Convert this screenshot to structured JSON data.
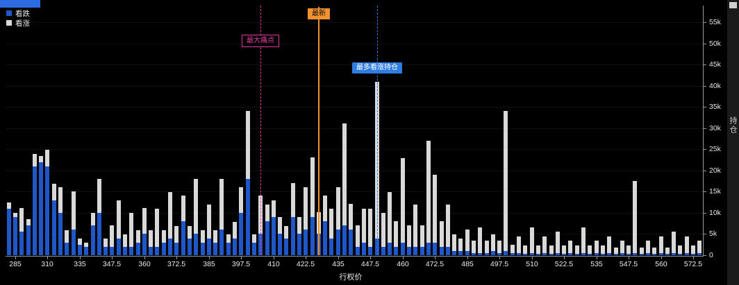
{
  "legend": {
    "put_label": "看跌",
    "call_label": "看涨"
  },
  "chart_data": {
    "type": "bar",
    "stacked": true,
    "x_label": "行权价",
    "y_label": "持仓",
    "background": "#000000",
    "legend_position": "top-left",
    "grid": "faint-horizontal",
    "ylim": [
      0,
      55000
    ],
    "y_ticks": [
      0,
      5000,
      10000,
      15000,
      20000,
      25000,
      30000,
      35000,
      40000,
      45000,
      50000,
      55000
    ],
    "y_tick_labels": [
      "0",
      "5k",
      "10k",
      "15k",
      "20k",
      "25k",
      "30k",
      "35k",
      "40k",
      "45k",
      "50k",
      "55k"
    ],
    "x_tick_labels": [
      "285",
      "310",
      "335",
      "347.5",
      "360",
      "372.5",
      "385",
      "397.5",
      "410",
      "422.5",
      "435",
      "447.5",
      "460",
      "472.5",
      "485",
      "497.5",
      "510",
      "522.5",
      "535",
      "547.5",
      "560",
      "572.5"
    ],
    "categories": [
      280,
      285,
      290,
      295,
      300,
      305,
      310,
      315,
      320,
      325,
      330,
      335,
      337.5,
      340,
      342.5,
      345,
      347.5,
      350,
      352.5,
      355,
      357.5,
      360,
      362.5,
      365,
      367.5,
      370,
      372.5,
      375,
      377.5,
      380,
      382.5,
      385,
      387.5,
      390,
      392.5,
      395,
      397.5,
      400,
      402.5,
      405,
      407.5,
      410,
      412.5,
      415,
      417.5,
      420,
      422.5,
      425,
      427.5,
      430,
      432.5,
      435,
      437.5,
      440,
      442.5,
      445,
      447.5,
      450,
      452.5,
      455,
      457.5,
      460,
      462.5,
      465,
      467.5,
      470,
      472.5,
      475,
      477.5,
      480,
      482.5,
      485,
      487.5,
      490,
      492.5,
      495,
      497.5,
      500,
      502.5,
      505,
      507.5,
      510,
      512.5,
      515,
      517.5,
      520,
      522.5,
      525,
      527.5,
      530,
      532.5,
      535,
      537.5,
      540,
      542.5,
      545,
      547.5,
      550,
      552.5,
      555,
      557.5,
      560,
      562.5,
      565,
      567.5,
      570,
      572.5,
      575
    ],
    "series": [
      {
        "name": "看跌",
        "color": "#1f57c9",
        "values": [
          11000,
          9000,
          5500,
          7000,
          21000,
          22000,
          21000,
          13000,
          10000,
          3000,
          6000,
          2500,
          2000,
          7000,
          10000,
          2000,
          2000,
          4000,
          2000,
          2000,
          3000,
          5000,
          2000,
          2000,
          3000,
          4000,
          3000,
          8000,
          4000,
          5000,
          3000,
          4000,
          3000,
          6000,
          3000,
          4000,
          10000,
          18000,
          3000,
          5000,
          8000,
          9000,
          5000,
          4000,
          9000,
          5000,
          6000,
          9000,
          5000,
          8000,
          4000,
          6000,
          7000,
          6000,
          2000,
          3000,
          2000,
          4000,
          2000,
          3000,
          2000,
          3000,
          2000,
          2000,
          2000,
          3000,
          3000,
          2000,
          2000,
          1000,
          1000,
          1000,
          500,
          500,
          500,
          1000,
          500,
          1000,
          500,
          500,
          300,
          500,
          300,
          500,
          300,
          500,
          300,
          500,
          300,
          500,
          300,
          500,
          300,
          500,
          300,
          500,
          300,
          500,
          300,
          500,
          300,
          500,
          300,
          500,
          300,
          500,
          300,
          500
        ]
      },
      {
        "name": "看涨",
        "color": "#d9d9d9",
        "values": [
          1500,
          1000,
          5500,
          1500,
          3000,
          1500,
          4000,
          4000,
          6000,
          3000,
          9000,
          1500,
          1000,
          3000,
          8000,
          2000,
          5000,
          9000,
          3000,
          8000,
          3000,
          6000,
          4000,
          9000,
          3000,
          11000,
          4000,
          6000,
          3000,
          13000,
          3000,
          8000,
          3000,
          12000,
          2000,
          4000,
          6000,
          16000,
          2000,
          9000,
          4000,
          4000,
          4000,
          3000,
          8000,
          4000,
          10000,
          14000,
          5000,
          6000,
          7000,
          10000,
          24000,
          6000,
          5000,
          8000,
          9000,
          37000,
          8000,
          12000,
          6000,
          20000,
          5000,
          10000,
          5000,
          24000,
          16000,
          6000,
          10000,
          4000,
          3000,
          5000,
          3000,
          6000,
          3000,
          4000,
          3000,
          33000,
          2000,
          4000,
          2000,
          6000,
          2000,
          4000,
          2000,
          5000,
          2000,
          3000,
          2000,
          6000,
          2000,
          3000,
          2000,
          4000,
          1500,
          3000,
          2000,
          17000,
          1500,
          3000,
          1500,
          4000,
          1500,
          5000,
          2000,
          4000,
          2000,
          3000
        ]
      }
    ],
    "annotations": [
      {
        "label": "最大痛点",
        "strike": 405,
        "type": "vline",
        "line_style": "dashed",
        "color": "#e23a9e"
      },
      {
        "label": "最新",
        "strike": 427.5,
        "type": "vline",
        "line_style": "solid",
        "color": "#f2922f"
      },
      {
        "label": "最多看涨持仓",
        "strike": 450,
        "type": "vline",
        "line_style": "dashed",
        "color": "#2f7de1"
      }
    ]
  }
}
